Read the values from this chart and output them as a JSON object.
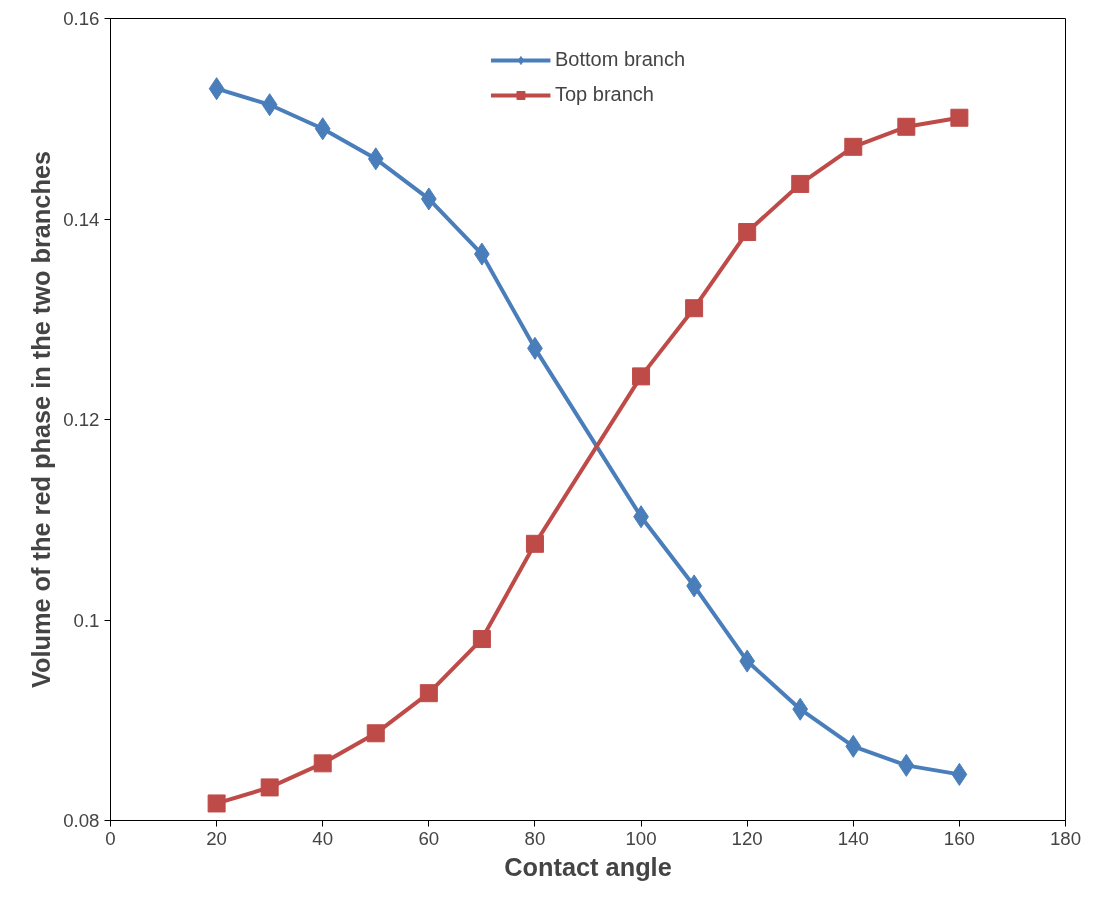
{
  "chart_data": {
    "type": "line",
    "xlabel": "Contact angle",
    "ylabel": "Volume of the red phase in the two branches",
    "x": [
      20,
      30,
      40,
      50,
      60,
      70,
      80,
      100,
      110,
      120,
      130,
      140,
      150,
      160
    ],
    "series": [
      {
        "name": "Bottom branch",
        "color": "#4a7ebb",
        "marker": "diamond",
        "values": [
          0.153,
          0.1514,
          0.149,
          0.146,
          0.142,
          0.1365,
          0.1271,
          0.1103,
          0.1034,
          0.0959,
          0.0911,
          0.0874,
          0.0855,
          0.0846
        ]
      },
      {
        "name": "Top branch",
        "color": "#be4b48",
        "marker": "square",
        "values": [
          0.0817,
          0.0833,
          0.0857,
          0.0887,
          0.0927,
          0.0981,
          0.1076,
          0.1243,
          0.1311,
          0.1387,
          0.1435,
          0.1472,
          0.1492,
          0.1501
        ]
      }
    ],
    "xlim": [
      0,
      180
    ],
    "xticks": [
      0,
      20,
      40,
      60,
      80,
      100,
      120,
      140,
      160,
      180
    ],
    "ylim": [
      0.08,
      0.16
    ],
    "yticks": [
      0.08,
      0.1,
      0.12,
      0.14,
      0.16
    ],
    "grid": false,
    "legend": "top",
    "line_style": "solid"
  }
}
